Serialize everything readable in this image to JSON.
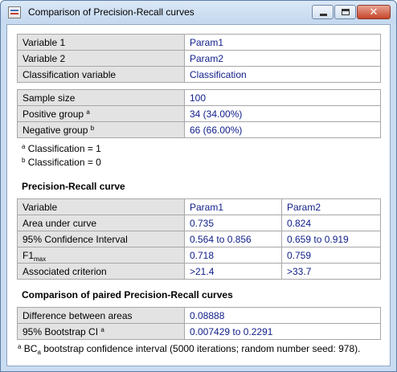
{
  "window": {
    "title": "Comparison of Precision-Recall curves"
  },
  "variables": {
    "rows": [
      {
        "label": "Variable 1",
        "value": "Param1"
      },
      {
        "label": "Variable 2",
        "value": "Param2"
      },
      {
        "label": "Classification variable",
        "value": "Classification"
      }
    ]
  },
  "sample": {
    "size_label": "Sample size",
    "size_value": "100",
    "positive_label": "Positive group",
    "positive_sup": "a",
    "positive_value": "34 (34.00%)",
    "negative_label": "Negative group",
    "negative_sup": "b",
    "negative_value": "66 (66.00%)"
  },
  "footnotes_class": {
    "a_sup": "a",
    "a_text": "Classification = 1",
    "b_sup": "b",
    "b_text": "Classification = 0"
  },
  "pr_curve": {
    "heading": "Precision-Recall curve",
    "header": {
      "label": "Variable",
      "col1": "Param1",
      "col2": "Param2"
    },
    "auc": {
      "label": "Area under curve",
      "col1": "0.735",
      "col2": "0.824"
    },
    "ci": {
      "label": "95% Confidence Interval",
      "col1": "0.564 to 0.856",
      "col2": "0.659 to 0.919"
    },
    "f1": {
      "label_main": "F1",
      "label_sub": "max",
      "col1": "0.718",
      "col2": "0.759"
    },
    "criterion": {
      "label": "Associated criterion",
      "col1": ">21.4",
      "col2": ">33.7"
    }
  },
  "paired": {
    "heading": "Comparison of paired Precision-Recall curves",
    "diff_label": "Difference between areas",
    "diff_value": "0.08888",
    "boot_label": "95% Bootstrap CI",
    "boot_sup": "a",
    "boot_value": "0.007429 to 0.2291"
  },
  "footnote_boot": {
    "sup": "a",
    "bc": "BC",
    "sub": "a",
    "text": " bootstrap confidence interval (5000 iterations; random number seed: 978)."
  }
}
